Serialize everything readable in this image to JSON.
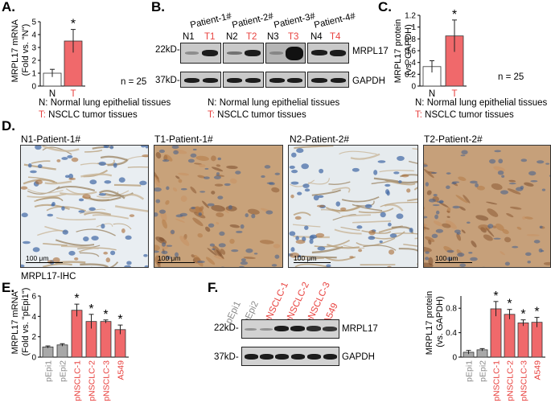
{
  "panels": {
    "A": "A.",
    "B": "B.",
    "C": "C.",
    "D": "D.",
    "E": "E.",
    "F": "F."
  },
  "colors": {
    "red": "#e8423f",
    "bar_red": "#f0696b",
    "bar_gray": "#a8a8a8",
    "normal_bar": "#ffffff"
  },
  "panelA": {
    "ylabel_line1": "MRPL17 mRNA",
    "ylabel_line2": "(Fold vs. \"N\")",
    "n_text": "n = 25",
    "legend_n": "N: Normal lung epithelial tissues",
    "legend_t_prefix": "T:",
    "legend_t_text": " NSCLC tumor tissues"
  },
  "panelB": {
    "patients": [
      "Patient-1#",
      "Patient-2#",
      "Patient-3#",
      "Patient-4#"
    ],
    "lanes": [
      "N1",
      "T1",
      "N2",
      "T2",
      "N3",
      "T3",
      "N4",
      "T4"
    ],
    "mw_top": "22kD-",
    "mw_bottom": "37kD-",
    "protein_top": "MRPL17",
    "protein_bottom": "GAPDH",
    "legend_n": "N: Normal lung epithelial tissues",
    "legend_t_prefix": "T:",
    "legend_t_text": " NSCLC tumor tissues"
  },
  "panelC": {
    "ylabel_line1": "MRPL17 protein",
    "ylabel_line2": "(vs. GAPDH)",
    "n_text": "n = 25",
    "legend_n": "N: Normal lung epithelial tissues",
    "legend_t_prefix": "T:",
    "legend_t_text": " NSCLC tumor tissues"
  },
  "panelD": {
    "images": [
      {
        "title": "N1-Patient-1#",
        "scale": "100 μm",
        "kind": "normal"
      },
      {
        "title": "T1-Patient-1#",
        "scale": "100 μm",
        "kind": "tumor"
      },
      {
        "title": "N2-Patient-2#",
        "scale": "100 μm",
        "kind": "normal"
      },
      {
        "title": "T2-Patient-2#",
        "scale": "100 μm",
        "kind": "tumor"
      }
    ],
    "footer": "MRPL17-IHC"
  },
  "panelE": {
    "ylabel_line1": "MRPL17 mRNA",
    "ylabel_line2": "(Fold vs. \"pEpi1\")"
  },
  "panelF": {
    "lanes": [
      "pEpi1",
      "pEpi2",
      "pNSCLC-1",
      "pNSCLC-2",
      "pNSCLC-3",
      "A549"
    ],
    "mw_top": "22kD-",
    "mw_bottom": "37kD-",
    "protein_top": "MRPL17",
    "protein_bottom": "GAPDH",
    "ylabel_line1": "MRPL17 protein",
    "ylabel_line2": "(vs. GAPDH)"
  },
  "chart_data": [
    {
      "id": "A",
      "type": "bar",
      "categories": [
        "N",
        "T"
      ],
      "values": [
        1.0,
        3.5
      ],
      "errors": [
        0.3,
        0.9
      ],
      "significant": [
        false,
        true
      ],
      "ylim": [
        0,
        5
      ],
      "yticks": [
        0,
        1,
        2,
        3,
        4,
        5
      ],
      "ylabel": "MRPL17 mRNA (Fold vs. \"N\")",
      "colors": [
        "#ffffff",
        "#f0696b"
      ]
    },
    {
      "id": "C",
      "type": "bar",
      "categories": [
        "N",
        "T"
      ],
      "values": [
        0.33,
        0.85
      ],
      "errors": [
        0.1,
        0.27
      ],
      "significant": [
        false,
        true
      ],
      "ylim": [
        0,
        1.2
      ],
      "yticks": [
        0,
        0.2,
        0.4,
        0.6,
        0.8,
        1.0,
        1.2
      ],
      "yticklabels": [
        "0",
        "0.2",
        "0.4",
        "0.6",
        "0.8",
        "1",
        "1.2"
      ],
      "ylabel": "MRPL17 protein (vs. GAPDH)",
      "colors": [
        "#ffffff",
        "#f0696b"
      ]
    },
    {
      "id": "E",
      "type": "bar",
      "categories": [
        "pEpi1",
        "pEpi2",
        "pNSCLC-1",
        "pNSCLC-2",
        "pNSCLC-3",
        "A549"
      ],
      "values": [
        1.0,
        1.2,
        4.6,
        3.5,
        3.5,
        2.7
      ],
      "errors": [
        0.1,
        0.12,
        0.6,
        0.7,
        0.15,
        0.45
      ],
      "significant": [
        false,
        false,
        true,
        true,
        true,
        true
      ],
      "ylim": [
        0,
        6
      ],
      "yticks": [
        0,
        2,
        4,
        6
      ],
      "ylabel": "MRPL17 mRNA (Fold vs. \"pEpi1\")",
      "colors": [
        "#a8a8a8",
        "#a8a8a8",
        "#f0696b",
        "#f0696b",
        "#f0696b",
        "#f0696b"
      ],
      "label_colors": [
        "#8a8a8a",
        "#8a8a8a",
        "#e8423f",
        "#e8423f",
        "#e8423f",
        "#e8423f"
      ]
    },
    {
      "id": "F",
      "type": "bar",
      "categories": [
        "pEpi1",
        "pEpi2",
        "pNSCLC-1",
        "pNSCLC-2",
        "pNSCLC-3",
        "A549"
      ],
      "values": [
        0.08,
        0.12,
        0.79,
        0.7,
        0.56,
        0.57
      ],
      "errors": [
        0.03,
        0.02,
        0.12,
        0.08,
        0.05,
        0.08
      ],
      "significant": [
        false,
        false,
        true,
        true,
        true,
        true
      ],
      "ylim": [
        0,
        1.0
      ],
      "yticks": [
        0,
        0.4,
        0.8
      ],
      "yticklabels": [
        "0",
        "0.4",
        "0.8"
      ],
      "ylabel": "MRPL17 protein (vs. GAPDH)",
      "colors": [
        "#a8a8a8",
        "#a8a8a8",
        "#f0696b",
        "#f0696b",
        "#f0696b",
        "#f0696b"
      ],
      "label_colors": [
        "#8a8a8a",
        "#8a8a8a",
        "#e8423f",
        "#e8423f",
        "#e8423f",
        "#e8423f"
      ]
    }
  ]
}
